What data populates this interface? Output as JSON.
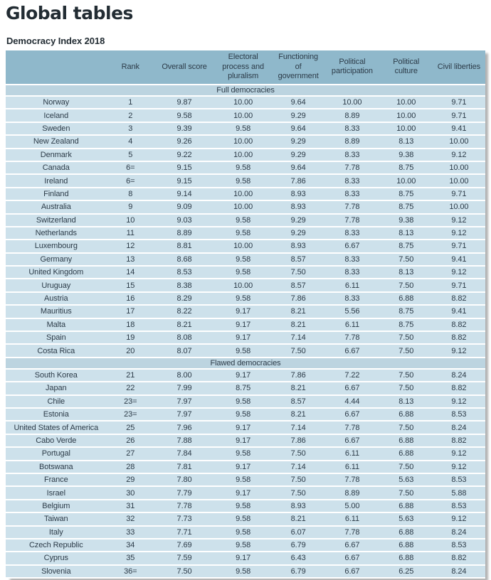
{
  "page": {
    "title": "Global tables",
    "subtitle": "Democracy Index 2018"
  },
  "table": {
    "columns": [
      "",
      "Rank",
      "Overall score",
      "Electoral process and pluralism",
      "Functioning of government",
      "Political participation",
      "Political culture",
      "Civil liberties"
    ],
    "sections": [
      {
        "label": "Full democracies",
        "rows": [
          [
            "Norway",
            "1",
            "9.87",
            "10.00",
            "9.64",
            "10.00",
            "10.00",
            "9.71"
          ],
          [
            "Iceland",
            "2",
            "9.58",
            "10.00",
            "9.29",
            "8.89",
            "10.00",
            "9.71"
          ],
          [
            "Sweden",
            "3",
            "9.39",
            "9.58",
            "9.64",
            "8.33",
            "10.00",
            "9.41"
          ],
          [
            "New Zealand",
            "4",
            "9.26",
            "10.00",
            "9.29",
            "8.89",
            "8.13",
            "10.00"
          ],
          [
            "Denmark",
            "5",
            "9.22",
            "10.00",
            "9.29",
            "8.33",
            "9.38",
            "9.12"
          ],
          [
            "Canada",
            "6=",
            "9.15",
            "9.58",
            "9.64",
            "7.78",
            "8.75",
            "10.00"
          ],
          [
            "Ireland",
            "6=",
            "9.15",
            "9.58",
            "7.86",
            "8.33",
            "10.00",
            "10.00"
          ],
          [
            "Finland",
            "8",
            "9.14",
            "10.00",
            "8.93",
            "8.33",
            "8.75",
            "9.71"
          ],
          [
            "Australia",
            "9",
            "9.09",
            "10.00",
            "8.93",
            "7.78",
            "8.75",
            "10.00"
          ],
          [
            "Switzerland",
            "10",
            "9.03",
            "9.58",
            "9.29",
            "7.78",
            "9.38",
            "9.12"
          ],
          [
            "Netherlands",
            "11",
            "8.89",
            "9.58",
            "9.29",
            "8.33",
            "8.13",
            "9.12"
          ],
          [
            "Luxembourg",
            "12",
            "8.81",
            "10.00",
            "8.93",
            "6.67",
            "8.75",
            "9.71"
          ],
          [
            "Germany",
            "13",
            "8.68",
            "9.58",
            "8.57",
            "8.33",
            "7.50",
            "9.41"
          ],
          [
            "United Kingdom",
            "14",
            "8.53",
            "9.58",
            "7.50",
            "8.33",
            "8.13",
            "9.12"
          ],
          [
            "Uruguay",
            "15",
            "8.38",
            "10.00",
            "8.57",
            "6.11",
            "7.50",
            "9.71"
          ],
          [
            "Austria",
            "16",
            "8.29",
            "9.58",
            "7.86",
            "8.33",
            "6.88",
            "8.82"
          ],
          [
            "Mauritius",
            "17",
            "8.22",
            "9.17",
            "8.21",
            "5.56",
            "8.75",
            "9.41"
          ],
          [
            "Malta",
            "18",
            "8.21",
            "9.17",
            "8.21",
            "6.11",
            "8.75",
            "8.82"
          ],
          [
            "Spain",
            "19",
            "8.08",
            "9.17",
            "7.14",
            "7.78",
            "7.50",
            "8.82"
          ],
          [
            "Costa Rica",
            "20",
            "8.07",
            "9.58",
            "7.50",
            "6.67",
            "7.50",
            "9.12"
          ]
        ]
      },
      {
        "label": "Flawed democracies",
        "rows": [
          [
            "South Korea",
            "21",
            "8.00",
            "9.17",
            "7.86",
            "7.22",
            "7.50",
            "8.24"
          ],
          [
            "Japan",
            "22",
            "7.99",
            "8.75",
            "8.21",
            "6.67",
            "7.50",
            "8.82"
          ],
          [
            "Chile",
            "23=",
            "7.97",
            "9.58",
            "8.57",
            "4.44",
            "8.13",
            "9.12"
          ],
          [
            "Estonia",
            "23=",
            "7.97",
            "9.58",
            "8.21",
            "6.67",
            "6.88",
            "8.53"
          ],
          [
            "United States of America",
            "25",
            "7.96",
            "9.17",
            "7.14",
            "7.78",
            "7.50",
            "8.24"
          ],
          [
            "Cabo Verde",
            "26",
            "7.88",
            "9.17",
            "7.86",
            "6.67",
            "6.88",
            "8.82"
          ],
          [
            "Portugal",
            "27",
            "7.84",
            "9.58",
            "7.50",
            "6.11",
            "6.88",
            "9.12"
          ],
          [
            "Botswana",
            "28",
            "7.81",
            "9.17",
            "7.14",
            "6.11",
            "7.50",
            "9.12"
          ],
          [
            "France",
            "29",
            "7.80",
            "9.58",
            "7.50",
            "7.78",
            "5.63",
            "8.53"
          ],
          [
            "Israel",
            "30",
            "7.79",
            "9.17",
            "7.50",
            "8.89",
            "7.50",
            "5.88"
          ],
          [
            "Belgium",
            "31",
            "7.78",
            "9.58",
            "8.93",
            "5.00",
            "6.88",
            "8.53"
          ],
          [
            "Taiwan",
            "32",
            "7.73",
            "9.58",
            "8.21",
            "6.11",
            "5.63",
            "9.12"
          ],
          [
            "Italy",
            "33",
            "7.71",
            "9.58",
            "6.07",
            "7.78",
            "6.88",
            "8.24"
          ],
          [
            "Czech Republic",
            "34",
            "7.69",
            "9.58",
            "6.79",
            "6.67",
            "6.88",
            "8.53"
          ],
          [
            "Cyprus",
            "35",
            "7.59",
            "9.17",
            "6.43",
            "6.67",
            "6.88",
            "8.82"
          ],
          [
            "Slovenia",
            "36=",
            "7.50",
            "9.58",
            "6.79",
            "6.67",
            "6.25",
            "8.24"
          ]
        ]
      }
    ]
  },
  "colors": {
    "header_bg": "#8fb8cb",
    "section_bg": "#bcd4e0",
    "row_bg": "#cde1eb",
    "text_color": "#2c3b48",
    "title_color": "#222c33"
  }
}
